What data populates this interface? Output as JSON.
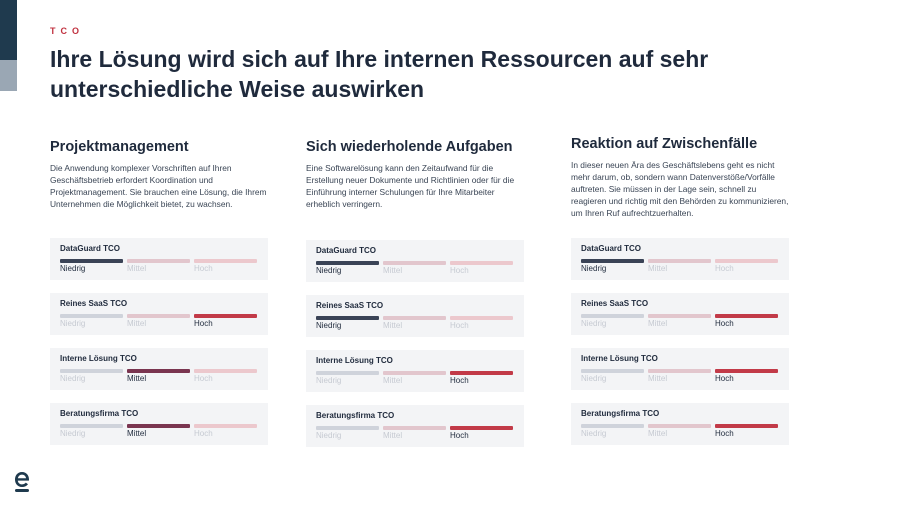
{
  "eyebrow": "TCO",
  "title": "Ihre Lösung wird sich auf Ihre internen Ressourcen auf sehr unterschiedliche Weise auswirken",
  "colors": {
    "low_active": "#3a4356",
    "mid_active": "#7a3550",
    "high_active": "#c23a48",
    "low_inactive": "#cfd3db",
    "mid_inactive": "#e2c6cd",
    "high_inactive": "#ecc8cd",
    "label_active": "#1f2a3c",
    "label_inactive": "#c6cad2"
  },
  "scale_labels": [
    "Niedrig",
    "Mittel",
    "Hoch"
  ],
  "columns": [
    {
      "title": "Projektmanagement",
      "description": "Die Anwendung komplexer Vorschriften auf Ihren Geschäftsbetrieb erfordert Koordination und Projektmanagement. Sie brauchen eine Lösung, die Ihrem Unternehmen die Möglichkeit bietet, zu wachsen.",
      "cards": [
        {
          "label": "DataGuard TCO",
          "level_index": 0
        },
        {
          "label": "Reines SaaS TCO",
          "level_index": 2
        },
        {
          "label": "Interne Lösung TCO",
          "level_index": 1
        },
        {
          "label": "Beratungsfirma TCO",
          "level_index": 1
        }
      ]
    },
    {
      "title": "Sich wiederholende Aufgaben",
      "description": "Eine Softwarelösung kann den Zeitaufwand für die Erstellung neuer Dokumente und Richtlinien oder für die Einführung interner Schulungen für Ihre Mitarbeiter erheblich verringern.",
      "cards": [
        {
          "label": "DataGuard TCO",
          "level_index": 0
        },
        {
          "label": "Reines SaaS TCO",
          "level_index": 0
        },
        {
          "label": "Interne Lösung TCO",
          "level_index": 2
        },
        {
          "label": "Beratungsfirma TCO",
          "level_index": 2
        }
      ]
    },
    {
      "title": "Reaktion auf Zwischenfälle",
      "description": "In dieser neuen Ära des Geschäftslebens geht es nicht mehr darum, ob, sondern wann Datenverstöße/Vorfälle auftreten. Sie müssen in der Lage sein, schnell zu reagieren und richtig mit den Behörden zu kommunizieren, um Ihren Ruf aufrechtzuerhalten.",
      "cards": [
        {
          "label": "DataGuard TCO",
          "level_index": 0
        },
        {
          "label": "Reines SaaS TCO",
          "level_index": 2
        },
        {
          "label": "Interne Lösung TCO",
          "level_index": 2
        },
        {
          "label": "Beratungsfirma TCO",
          "level_index": 2
        }
      ]
    }
  ],
  "logo_icon": "dataguard-e-logo-icon"
}
